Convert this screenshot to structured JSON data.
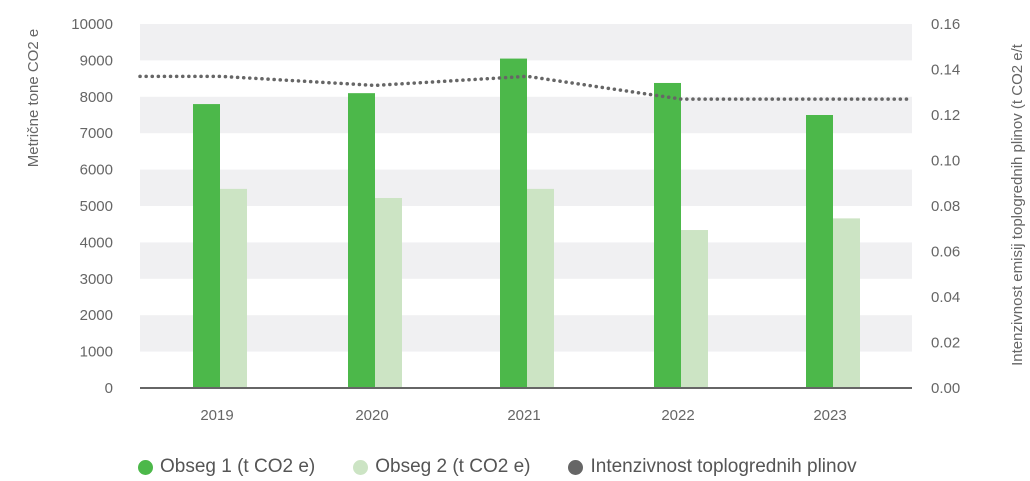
{
  "chart_data": {
    "type": "bar",
    "categories": [
      "2019",
      "2020",
      "2021",
      "2022",
      "2023"
    ],
    "series": [
      {
        "name": "Obseg 1 (t CO2 e)",
        "type": "bar",
        "axis": "left",
        "color": "#4cb84a",
        "values": [
          7800,
          8100,
          9050,
          8380,
          7500
        ]
      },
      {
        "name": "Obseg 2 (t CO2 e)",
        "type": "bar",
        "axis": "left",
        "color": "#cce4c4",
        "values": [
          5470,
          5220,
          5470,
          4340,
          4660
        ]
      },
      {
        "name": "Intenzivnost toplogrednih plinov",
        "type": "line",
        "axis": "right",
        "style": "dotted",
        "color": "#666666",
        "values": [
          0.137,
          0.133,
          0.137,
          0.127,
          0.127
        ]
      }
    ],
    "ylabel": "Metrične tone CO2 e",
    "y2label": "Intenzivnost emisij toplogrednih plinov (t CO2 e/t",
    "ylim": [
      0,
      10000
    ],
    "y2lim": [
      0,
      0.16
    ],
    "yticks": [
      "0",
      "1000",
      "2000",
      "3000",
      "4000",
      "5000",
      "6000",
      "7000",
      "8000",
      "9000",
      "10000"
    ],
    "y2ticks": [
      "0.00",
      "0.02",
      "0.04",
      "0.06",
      "0.08",
      "0.10",
      "0.12",
      "0.14",
      "0.16"
    ],
    "grid": "alternating horizontal bands",
    "legend": "bottom"
  }
}
